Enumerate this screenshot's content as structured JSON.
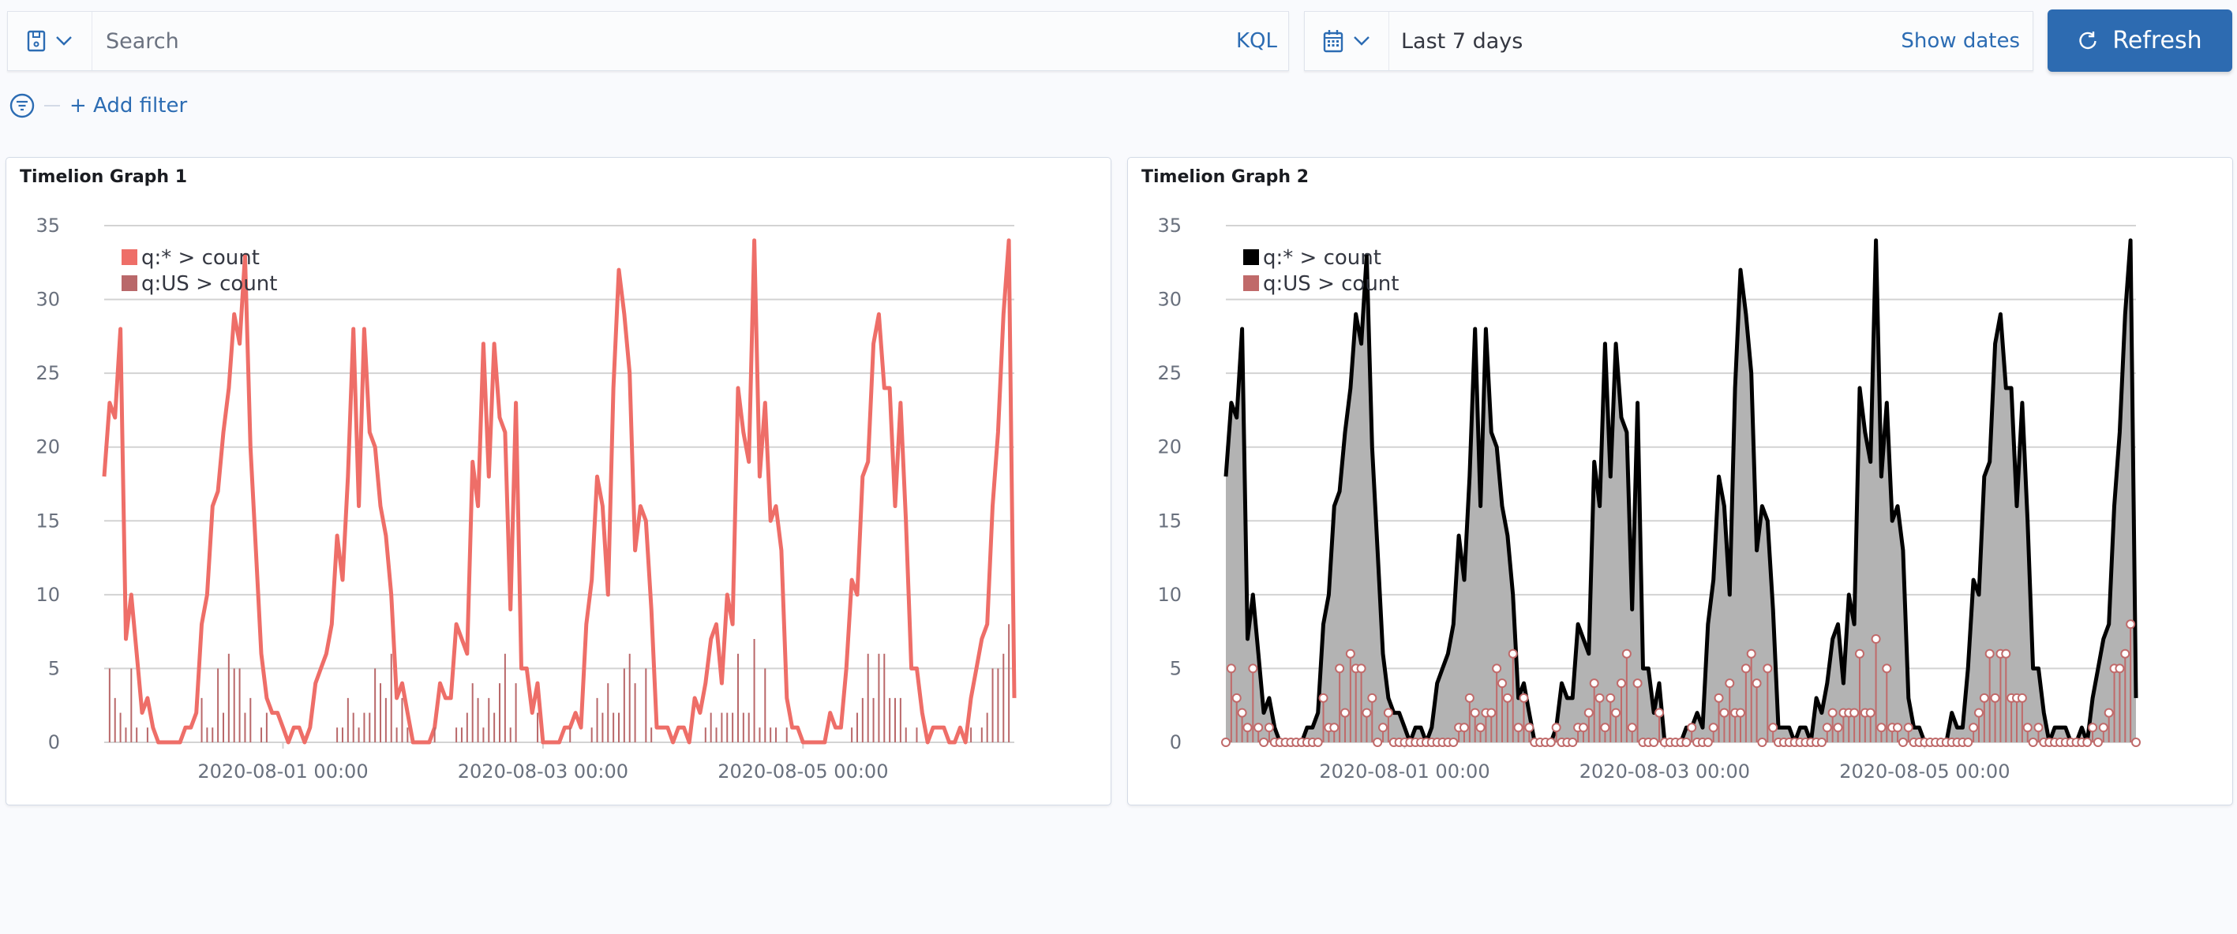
{
  "query_bar": {
    "saved_query_icon": "save-icon",
    "search_placeholder": "Search",
    "search_value": "",
    "language_toggle": "KQL"
  },
  "date_picker": {
    "icon": "calendar-icon",
    "value": "Last 7 days",
    "show_dates_label": "Show dates"
  },
  "refresh_button": {
    "label": "Refresh",
    "icon": "refresh-icon",
    "color": "#2d6bb1"
  },
  "filters": {
    "add_filter_label": "+ Add filter",
    "icon": "filter-icon"
  },
  "panels": [
    {
      "title": "Timelion Graph 1"
    },
    {
      "title": "Timelion Graph 2"
    }
  ],
  "chart_data": [
    {
      "type": "line",
      "title": "Timelion Graph 1",
      "ylim": [
        0,
        35
      ],
      "yticks": [
        "0",
        "5",
        "10",
        "15",
        "20",
        "25",
        "30",
        "35"
      ],
      "xticks": [
        "2020-08-01 00:00",
        "2020-08-03 00:00",
        "2020-08-05 00:00"
      ],
      "grid": "horizontal",
      "legend": "top-left",
      "x_start": "2020-07-30 15:00",
      "x_end": "2020-08-06 15:00",
      "x_interval": "1 hour",
      "series": [
        {
          "name": "q:* > count",
          "render": "line",
          "color": "#ee6e68",
          "values": [
            18,
            23,
            22,
            28,
            7,
            10,
            6,
            2,
            3,
            1,
            0,
            0,
            0,
            0,
            0,
            1,
            1,
            2,
            8,
            10,
            16,
            17,
            21,
            24,
            29,
            27,
            33,
            20,
            13,
            6,
            3,
            2,
            2,
            1,
            0,
            1,
            1,
            0,
            1,
            4,
            5,
            6,
            8,
            14,
            11,
            18,
            28,
            16,
            28,
            21,
            20,
            16,
            14,
            10,
            3,
            4,
            2,
            0,
            0,
            0,
            0,
            1,
            4,
            3,
            3,
            8,
            7,
            6,
            19,
            16,
            27,
            18,
            27,
            22,
            21,
            9,
            23,
            5,
            5,
            2,
            4,
            0,
            0,
            0,
            0,
            1,
            1,
            2,
            1,
            8,
            11,
            18,
            16,
            10,
            24,
            32,
            29,
            25,
            13,
            16,
            15,
            9,
            1,
            1,
            1,
            0,
            1,
            1,
            0,
            3,
            2,
            4,
            7,
            8,
            4,
            10,
            8,
            24,
            21,
            19,
            34,
            18,
            23,
            15,
            16,
            13,
            3,
            1,
            1,
            0,
            0,
            0,
            0,
            0,
            2,
            1,
            1,
            5,
            11,
            10,
            18,
            19,
            27,
            29,
            24,
            24,
            16,
            23,
            15,
            5,
            5,
            2,
            0,
            1,
            1,
            1,
            0,
            0,
            1,
            0,
            3,
            5,
            7,
            8,
            16,
            21,
            29,
            34,
            3
          ]
        },
        {
          "name": "q:US > count",
          "render": "bars",
          "color": "#b9686a",
          "values": [
            0,
            5,
            3,
            2,
            1,
            5,
            1,
            0,
            1,
            0,
            0,
            0,
            0,
            0,
            0,
            0,
            0,
            0,
            3,
            1,
            1,
            5,
            2,
            6,
            5,
            5,
            2,
            3,
            0,
            1,
            2,
            0,
            0,
            0,
            0,
            0,
            0,
            0,
            0,
            0,
            0,
            0,
            0,
            1,
            1,
            3,
            2,
            1,
            2,
            2,
            5,
            4,
            3,
            6,
            1,
            3,
            1,
            0,
            0,
            0,
            0,
            1,
            0,
            0,
            0,
            1,
            1,
            2,
            4,
            3,
            1,
            3,
            2,
            4,
            6,
            1,
            4,
            0,
            0,
            0,
            2,
            0,
            0,
            0,
            0,
            0,
            1,
            0,
            0,
            0,
            1,
            3,
            2,
            4,
            2,
            2,
            5,
            6,
            4,
            0,
            5,
            1,
            0,
            0,
            0,
            0,
            0,
            0,
            0,
            0,
            0,
            1,
            2,
            1,
            2,
            2,
            2,
            6,
            2,
            2,
            7,
            1,
            5,
            1,
            1,
            0,
            1,
            0,
            0,
            0,
            0,
            0,
            0,
            0,
            0,
            0,
            0,
            0,
            1,
            2,
            3,
            6,
            3,
            6,
            6,
            3,
            3,
            3,
            1,
            0,
            1,
            0,
            0,
            0,
            0,
            0,
            0,
            0,
            0,
            0,
            1,
            0,
            1,
            2,
            5,
            5,
            6,
            8,
            0
          ]
        }
      ]
    },
    {
      "type": "area",
      "title": "Timelion Graph 2",
      "ylim": [
        0,
        35
      ],
      "yticks": [
        "0",
        "5",
        "10",
        "15",
        "20",
        "25",
        "30",
        "35"
      ],
      "xticks": [
        "2020-08-01 00:00",
        "2020-08-03 00:00",
        "2020-08-05 00:00"
      ],
      "grid": "horizontal",
      "legend": "top-left",
      "x_start": "2020-07-30 15:00",
      "x_end": "2020-08-06 15:00",
      "x_interval": "1 hour",
      "series": [
        {
          "name": "q:* > count",
          "render": "area",
          "color": "#000000",
          "fill": "#b3b3b3",
          "values": [
            18,
            23,
            22,
            28,
            7,
            10,
            6,
            2,
            3,
            1,
            0,
            0,
            0,
            0,
            0,
            1,
            1,
            2,
            8,
            10,
            16,
            17,
            21,
            24,
            29,
            27,
            33,
            20,
            13,
            6,
            3,
            2,
            2,
            1,
            0,
            1,
            1,
            0,
            1,
            4,
            5,
            6,
            8,
            14,
            11,
            18,
            28,
            16,
            28,
            21,
            20,
            16,
            14,
            10,
            3,
            4,
            2,
            0,
            0,
            0,
            0,
            1,
            4,
            3,
            3,
            8,
            7,
            6,
            19,
            16,
            27,
            18,
            27,
            22,
            21,
            9,
            23,
            5,
            5,
            2,
            4,
            0,
            0,
            0,
            0,
            1,
            1,
            2,
            1,
            8,
            11,
            18,
            16,
            10,
            24,
            32,
            29,
            25,
            13,
            16,
            15,
            9,
            1,
            1,
            1,
            0,
            1,
            1,
            0,
            3,
            2,
            4,
            7,
            8,
            4,
            10,
            8,
            24,
            21,
            19,
            34,
            18,
            23,
            15,
            16,
            13,
            3,
            1,
            1,
            0,
            0,
            0,
            0,
            0,
            2,
            1,
            1,
            5,
            11,
            10,
            18,
            19,
            27,
            29,
            24,
            24,
            16,
            23,
            15,
            5,
            5,
            2,
            0,
            1,
            1,
            1,
            0,
            0,
            1,
            0,
            3,
            5,
            7,
            8,
            16,
            21,
            29,
            34,
            3
          ]
        },
        {
          "name": "q:US > count",
          "render": "stems-with-points",
          "color": "#c06a6a",
          "values": [
            0,
            5,
            3,
            2,
            1,
            5,
            1,
            0,
            1,
            0,
            0,
            0,
            0,
            0,
            0,
            0,
            0,
            0,
            3,
            1,
            1,
            5,
            2,
            6,
            5,
            5,
            2,
            3,
            0,
            1,
            2,
            0,
            0,
            0,
            0,
            0,
            0,
            0,
            0,
            0,
            0,
            0,
            0,
            1,
            1,
            3,
            2,
            1,
            2,
            2,
            5,
            4,
            3,
            6,
            1,
            3,
            1,
            0,
            0,
            0,
            0,
            1,
            0,
            0,
            0,
            1,
            1,
            2,
            4,
            3,
            1,
            3,
            2,
            4,
            6,
            1,
            4,
            0,
            0,
            0,
            2,
            0,
            0,
            0,
            0,
            0,
            1,
            0,
            0,
            0,
            1,
            3,
            2,
            4,
            2,
            2,
            5,
            6,
            4,
            0,
            5,
            1,
            0,
            0,
            0,
            0,
            0,
            0,
            0,
            0,
            0,
            1,
            2,
            1,
            2,
            2,
            2,
            6,
            2,
            2,
            7,
            1,
            5,
            1,
            1,
            0,
            1,
            0,
            0,
            0,
            0,
            0,
            0,
            0,
            0,
            0,
            0,
            0,
            1,
            2,
            3,
            6,
            3,
            6,
            6,
            3,
            3,
            3,
            1,
            0,
            1,
            0,
            0,
            0,
            0,
            0,
            0,
            0,
            0,
            0,
            1,
            0,
            1,
            2,
            5,
            5,
            6,
            8,
            0
          ]
        }
      ]
    }
  ]
}
